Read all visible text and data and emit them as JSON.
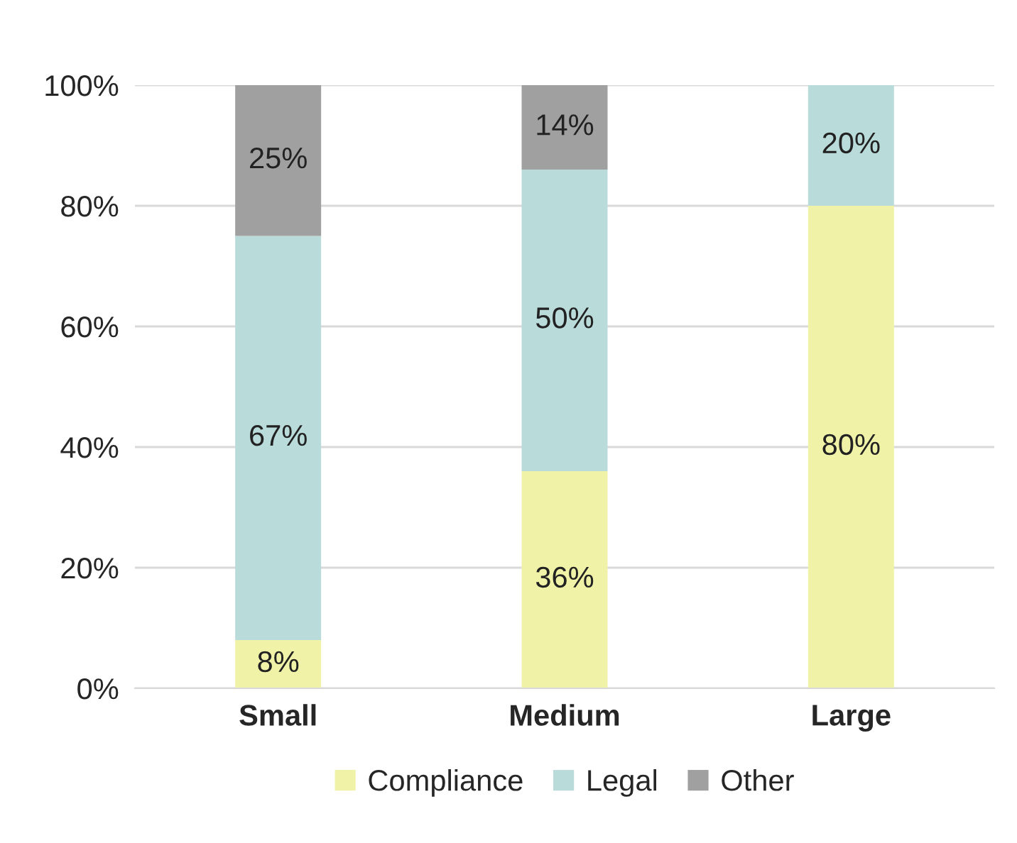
{
  "chart_data": {
    "type": "bar",
    "stacked": true,
    "categories": [
      "Small",
      "Medium",
      "Large"
    ],
    "series": [
      {
        "name": "Compliance",
        "color": "#f0f2a8",
        "values": [
          8,
          36,
          80
        ],
        "value_labels": [
          "8%",
          "36%",
          "80%"
        ]
      },
      {
        "name": "Legal",
        "color": "#b9dcdb",
        "values": [
          67,
          50,
          20
        ],
        "value_labels": [
          "67%",
          "50%",
          "20%"
        ]
      },
      {
        "name": "Other",
        "color": "#a0a0a0",
        "values": [
          25,
          14,
          0
        ],
        "value_labels": [
          "25%",
          "14%",
          null
        ]
      }
    ],
    "ylim": [
      0,
      100
    ],
    "yticks": [
      {
        "value": 0,
        "label": "0%"
      },
      {
        "value": 20,
        "label": "20%"
      },
      {
        "value": 40,
        "label": "40%"
      },
      {
        "value": 60,
        "label": "60%"
      },
      {
        "value": 80,
        "label": "80%"
      },
      {
        "value": 100,
        "label": "100%"
      }
    ],
    "grid": "y",
    "legend": "bottom"
  }
}
